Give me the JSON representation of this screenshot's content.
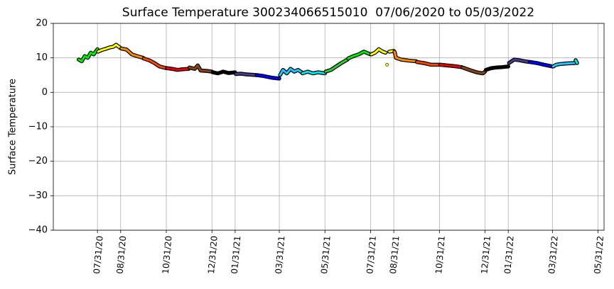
{
  "chart_data": {
    "type": "line",
    "title": "Surface Temperature 300234066515010  07/06/2020 to 05/03/2022",
    "ylabel": "Surface Temperature",
    "xlim": [
      "06/02/20",
      "06/08/22"
    ],
    "xticks": [
      "07/31/20",
      "08/31/20",
      "10/31/20",
      "12/31/20",
      "01/31/21",
      "03/31/21",
      "05/31/21",
      "07/31/21",
      "08/31/21",
      "10/31/21",
      "12/31/21",
      "01/31/22",
      "03/31/22",
      "05/31/22"
    ],
    "ylim": [
      -40,
      20
    ],
    "yticks": [
      {
        "value": -40,
        "label": "−40"
      },
      {
        "value": -30,
        "label": "−30"
      },
      {
        "value": -20,
        "label": "−20"
      },
      {
        "value": -10,
        "label": "−10"
      },
      0,
      10,
      20
    ],
    "grid": true,
    "series": [
      {
        "color": "#00ee00",
        "x": [
          "07/06/20",
          "07/10/20",
          "07/14/20",
          "07/18/20",
          "07/22/20",
          "07/26/20",
          "07/31/20"
        ],
        "values": [
          9.5,
          9,
          10.5,
          10,
          11.5,
          11,
          12.5
        ]
      },
      {
        "color": "#ffff00",
        "x": [
          "08/01/20",
          "08/06/20",
          "08/11/20",
          "08/16/20",
          "08/21/20",
          "08/25/20",
          "08/31/20"
        ],
        "values": [
          11.8,
          12.3,
          12.6,
          13,
          13.2,
          13.8,
          12.8
        ]
      },
      {
        "color": "#ff8c00",
        "x": [
          "09/01/20",
          "09/08/20",
          "09/15/20",
          "09/22/20",
          "09/30/20"
        ],
        "values": [
          12.7,
          12.4,
          11,
          10.5,
          10
        ]
      },
      {
        "color": "#ff4500",
        "x": [
          "10/01/20",
          "10/08/20",
          "10/15/20",
          "10/22/20",
          "10/31/20"
        ],
        "values": [
          9.8,
          9.3,
          8.5,
          7.5,
          7
        ]
      },
      {
        "color": "#ee0000",
        "x": [
          "11/01/20",
          "11/08/20",
          "11/15/20",
          "11/22/20",
          "11/30/20"
        ],
        "values": [
          7,
          6.8,
          6.5,
          6.7,
          6.8
        ]
      },
      {
        "color": "#8b4513",
        "x": [
          "12/01/20",
          "12/08/20",
          "12/12/20",
          "12/16/20",
          "12/24/20",
          "12/31/20"
        ],
        "values": [
          7.2,
          6.8,
          7.8,
          6.3,
          6.2,
          6
        ]
      },
      {
        "color": "#000000",
        "x": [
          "01/01/21",
          "01/08/21",
          "01/15/21",
          "01/22/21",
          "01/31/21"
        ],
        "values": [
          5.8,
          5.5,
          6,
          5.6,
          5.8
        ]
      },
      {
        "color": "#483d8b",
        "x": [
          "02/01/21",
          "02/08/21",
          "02/15/21",
          "02/22/21",
          "02/28/21"
        ],
        "values": [
          5.3,
          5.4,
          5.2,
          5.1,
          5
        ]
      },
      {
        "color": "#0000ff",
        "x": [
          "03/01/21",
          "03/08/21",
          "03/15/21",
          "03/22/21",
          "03/31/21"
        ],
        "values": [
          5,
          4.8,
          4.5,
          4.2,
          4
        ]
      },
      {
        "color": "#1ec8ff",
        "x": [
          "04/01/21",
          "04/05/21",
          "04/10/21",
          "04/15/21",
          "04/20/21",
          "04/25/21",
          "04/30/21"
        ],
        "values": [
          5,
          6.5,
          5.5,
          6.8,
          6,
          6.5,
          5.8
        ]
      },
      {
        "color": "#00e5ee",
        "x": [
          "05/01/21",
          "05/08/21",
          "05/15/21",
          "05/22/21",
          "05/31/21"
        ],
        "values": [
          5.5,
          6,
          5.5,
          5.8,
          5.5
        ]
      },
      {
        "color": "#32cd32",
        "x": [
          "06/01/21",
          "06/08/21",
          "06/15/21",
          "06/22/21",
          "06/30/21"
        ],
        "values": [
          6,
          6.5,
          7.5,
          8.5,
          9.5
        ]
      },
      {
        "color": "#00ee00",
        "x": [
          "07/01/21",
          "07/08/21",
          "07/15/21",
          "07/22/21",
          "07/31/21"
        ],
        "values": [
          9.8,
          10.5,
          11,
          11.8,
          11
        ]
      },
      {
        "color": "#ffff00",
        "x": [
          "08/01/21",
          "08/06/21",
          "08/11/21",
          "08/16/21",
          "08/20/21",
          "08/21/21",
          "08/22/21",
          "08/23/21",
          "08/25/21",
          "08/31/21"
        ],
        "values": [
          11,
          11.5,
          12.5,
          11.8,
          11.5,
          null,
          8,
          null,
          11.8,
          12
        ]
      },
      {
        "color": "#ff8c00",
        "x": [
          "09/01/21",
          "09/03/21",
          "09/10/21",
          "09/20/21",
          "09/30/21"
        ],
        "values": [
          11.8,
          10,
          9.5,
          9.2,
          9
        ]
      },
      {
        "color": "#ff4500",
        "x": [
          "10/01/21",
          "10/10/21",
          "10/20/21",
          "10/31/21"
        ],
        "values": [
          8.8,
          8.5,
          8,
          8
        ]
      },
      {
        "color": "#ee0000",
        "x": [
          "11/01/21",
          "11/10/21",
          "11/20/21",
          "11/30/21"
        ],
        "values": [
          8,
          7.8,
          7.6,
          7.3
        ]
      },
      {
        "color": "#8b4513",
        "x": [
          "12/01/21",
          "12/10/21",
          "12/20/21",
          "12/28/21",
          "12/31/21"
        ],
        "values": [
          7.2,
          6.5,
          5.8,
          5.5,
          6
        ]
      },
      {
        "color": "#000000",
        "x": [
          "01/01/22",
          "01/08/22",
          "01/15/22",
          "01/22/22",
          "01/31/22"
        ],
        "values": [
          6.5,
          7,
          7.2,
          7.3,
          7.5
        ]
      },
      {
        "color": "#483d8b",
        "x": [
          "02/01/22",
          "02/08/22",
          "02/15/22",
          "02/22/22",
          "02/28/22"
        ],
        "values": [
          8.5,
          9.5,
          9.3,
          9,
          8.8
        ]
      },
      {
        "color": "#0000ff",
        "x": [
          "03/01/22",
          "03/10/22",
          "03/20/22",
          "03/31/22"
        ],
        "values": [
          8.8,
          8.5,
          8,
          7.5
        ]
      },
      {
        "color": "#1ec8ff",
        "x": [
          "04/01/22",
          "04/05/22",
          "04/10/22",
          "04/20/22",
          "04/30/22"
        ],
        "values": [
          7.5,
          8,
          8.2,
          8.4,
          8.5
        ]
      },
      {
        "color": "#00e5ee",
        "x": [
          "05/01/22",
          "05/03/22"
        ],
        "values": [
          9.3,
          8.5
        ]
      }
    ]
  }
}
